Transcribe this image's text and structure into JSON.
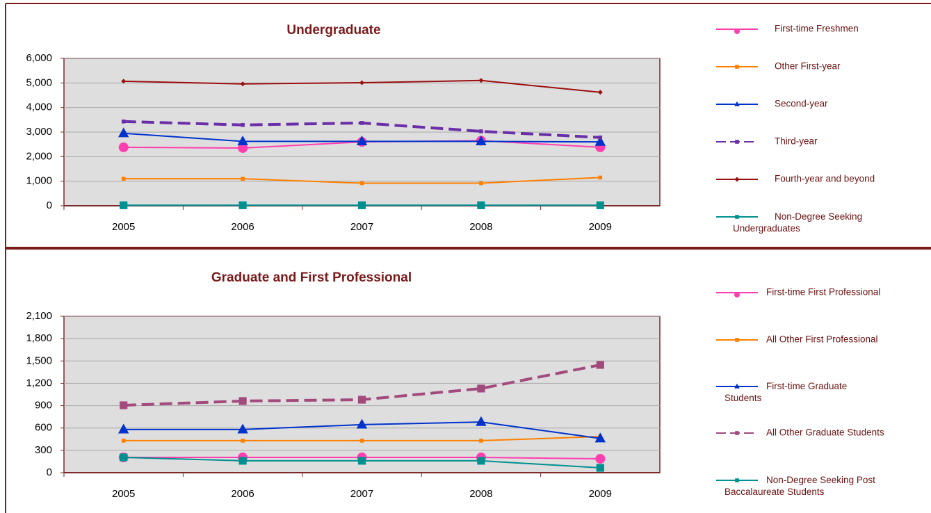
{
  "chart_data": [
    {
      "type": "line",
      "title": "Undergraduate",
      "categories": [
        "2005",
        "2006",
        "2007",
        "2008",
        "2009"
      ],
      "ylim": [
        0,
        6000
      ],
      "yticks": [
        0,
        {
          "value": 1000,
          "label": "1,000"
        },
        {
          "value": 2000,
          "label": "2,000"
        },
        {
          "value": 3000,
          "label": "3,000"
        },
        {
          "value": 4000,
          "label": "4,000"
        },
        {
          "value": 5000,
          "label": "5,000"
        },
        {
          "value": 6000,
          "label": "6,000"
        }
      ],
      "grid": true,
      "series": [
        {
          "name": "First-time Freshmen",
          "color": "#ff3fb0",
          "marker": "circle",
          "dashed": false,
          "values": [
            2380,
            2350,
            2600,
            2650,
            2380
          ]
        },
        {
          "name": "Other First-year",
          "color": "#ff8000",
          "marker": "square",
          "dashed": false,
          "values": [
            1100,
            1100,
            920,
            920,
            1150
          ]
        },
        {
          "name": "Second-year",
          "color": "#0033cc",
          "marker": "triangle",
          "dashed": false,
          "values": [
            2950,
            2620,
            2620,
            2620,
            2600
          ]
        },
        {
          "name": "Third-year",
          "color": "#6a2fa8",
          "marker": "square",
          "dashed": true,
          "values": [
            3430,
            3290,
            3370,
            3030,
            2780
          ]
        },
        {
          "name": "Fourth-year and beyond",
          "color": "#9a0f0f",
          "marker": "diamond",
          "dashed": false,
          "values": [
            5070,
            4960,
            5010,
            5100,
            4620
          ]
        },
        {
          "name": "Non-Degree Seeking\nUndergraduates",
          "color": "#009090",
          "marker": "square",
          "dashed": false,
          "values": [
            20,
            20,
            20,
            20,
            20
          ]
        }
      ]
    },
    {
      "type": "line",
      "title": "Graduate and First Professional",
      "categories": [
        "2005",
        "2006",
        "2007",
        "2008",
        "2009"
      ],
      "ylim": [
        0,
        2100
      ],
      "yticks": [
        0,
        300,
        600,
        900,
        {
          "value": 1200,
          "label": "1,200"
        },
        {
          "value": 1500,
          "label": "1,500"
        },
        {
          "value": 1800,
          "label": "1,800"
        },
        {
          "value": 2100,
          "label": "2,100"
        }
      ],
      "grid": true,
      "series": [
        {
          "name": "First-time First Professional",
          "color": "#ff3fb0",
          "marker": "circle",
          "dashed": false,
          "values": [
            205,
            205,
            205,
            205,
            187
          ]
        },
        {
          "name": "All Other First Professional",
          "color": "#ff8000",
          "marker": "square",
          "dashed": false,
          "values": [
            430,
            430,
            430,
            430,
            485
          ]
        },
        {
          "name": "First-time Graduate\nStudents",
          "color": "#0033cc",
          "marker": "triangle",
          "dashed": false,
          "values": [
            580,
            580,
            645,
            680,
            460
          ]
        },
        {
          "name": "All Other Graduate Students",
          "color": "#a34a7c",
          "marker": "square",
          "dashed": true,
          "values": [
            905,
            962,
            980,
            1130,
            1447
          ]
        },
        {
          "name": "Non-Degree Seeking Post\nBaccalaureate Students",
          "color": "#009090",
          "marker": "square",
          "dashed": false,
          "values": [
            205,
            160,
            160,
            160,
            65
          ]
        }
      ]
    }
  ]
}
